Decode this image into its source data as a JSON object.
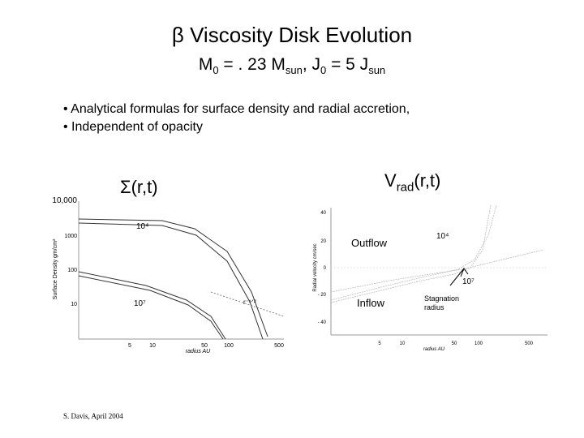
{
  "slide": {
    "title_symbol": "β",
    "title_text": "Viscosity Disk Evolution",
    "subtitle": {
      "m_prefix": "M",
      "m_sub": "0",
      "m_eq": " = . 23 M",
      "m_unit": "sun",
      "j_prefix": ", J",
      "j_sub": "0",
      "j_eq": " = 5 J",
      "j_unit": "sun"
    },
    "bullets": [
      "• Analytical formulas for surface density and radial accretion,",
      "• Independent of opacity"
    ],
    "footer": "S. Davis, April 2004"
  },
  "chart_data": [
    {
      "type": "line",
      "label_main": "Σ(r,t)",
      "xlabel": "radius AU",
      "ylabel": "Surface Density gm/cm²",
      "x_scale": "log",
      "y_scale": "log",
      "xlim": [
        1,
        500
      ],
      "ylim": [
        1,
        10000
      ],
      "x_ticks": [
        "5",
        "10",
        "50",
        "100",
        "500"
      ],
      "y_ticks": [
        "10,000",
        "1000",
        "100",
        "10"
      ],
      "annotations": {
        "t_early": "10⁴",
        "t_late": "10⁷",
        "slope": "r⁻¹ᐟ²"
      },
      "series": [
        {
          "x": [
            1,
            50,
            100,
            200,
            300,
            500
          ],
          "y": [
            3000,
            2000,
            1500,
            600,
            100,
            2
          ]
        },
        {
          "x": [
            1,
            50,
            100,
            200,
            300,
            500
          ],
          "y": [
            2500,
            1400,
            900,
            250,
            40,
            1.2
          ]
        },
        {
          "x": [
            1,
            20,
            50,
            100,
            150,
            200
          ],
          "y": [
            200,
            50,
            25,
            8,
            2,
            1
          ]
        },
        {
          "x": [
            1,
            20,
            50,
            100,
            150,
            200
          ],
          "y": [
            180,
            45,
            20,
            6,
            1.5,
            1
          ]
        }
      ]
    },
    {
      "type": "line",
      "label_main": "V",
      "label_sub": "rad",
      "label_tail": "(r,t)",
      "xlabel": "radius AU",
      "ylabel": "Radial velocity cm/sec",
      "x_scale": "log",
      "xlim": [
        1,
        500
      ],
      "ylim": [
        -50,
        45
      ],
      "x_ticks": [
        "5",
        "10",
        "50",
        "100",
        "500"
      ],
      "y_ticks": [
        "40",
        "20",
        "0",
        "- 20",
        "- 40"
      ],
      "annotations": {
        "outflow": "Outflow",
        "inflow": "Inflow",
        "t_early": "10⁴",
        "t_late": "10⁷",
        "stagnation": "Stagnation radius"
      },
      "series": [
        {
          "x": [
            1,
            10,
            50,
            100,
            200,
            300
          ],
          "y": [
            -40,
            -25,
            -10,
            0,
            15,
            40
          ]
        },
        {
          "x": [
            1,
            10,
            50,
            100,
            200,
            300
          ],
          "y": [
            -38,
            -22,
            -6,
            5,
            25,
            45
          ]
        },
        {
          "x": [
            1,
            10,
            50,
            100,
            200,
            300
          ],
          "y": [
            -30,
            -18,
            -5,
            2,
            8,
            12
          ]
        }
      ]
    }
  ]
}
